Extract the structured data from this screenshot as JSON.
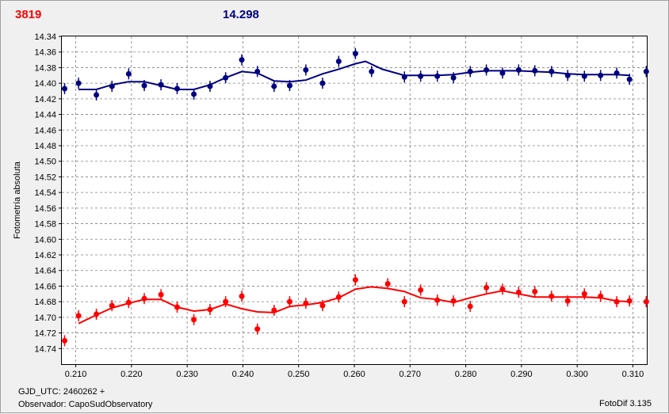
{
  "header": {
    "left_value": "3819",
    "right_value": "14.298"
  },
  "footer": {
    "gjd": "GJD_UTC: 2460262 +",
    "observer": "Observador: CapoSudObservatory",
    "software": "FotoDif 3.135"
  },
  "colors": {
    "blue": "#000080",
    "red": "#ff0000",
    "grid": "#808080"
  },
  "chart_data": {
    "type": "scatter",
    "title": "",
    "xlabel": "",
    "ylabel": "Fotometría absoluta",
    "xlim": [
      0.2075,
      0.3125
    ],
    "ylim": [
      14.34,
      14.76
    ],
    "y_inverted": true,
    "grid": true,
    "x_ticks": [
      "0.210",
      "0.220",
      "0.230",
      "0.240",
      "0.250",
      "0.260",
      "0.270",
      "0.280",
      "0.290",
      "0.300",
      "0.310"
    ],
    "y_ticks": [
      "14.34",
      "14.36",
      "14.38",
      "14.40",
      "14.42",
      "14.44",
      "14.46",
      "14.48",
      "14.50",
      "14.52",
      "14.54",
      "14.56",
      "14.58",
      "14.60",
      "14.62",
      "14.64",
      "14.66",
      "14.68",
      "14.70",
      "14.72",
      "14.74"
    ],
    "series": [
      {
        "color": "#000080",
        "points": [
          [
            0.208,
            14.407
          ],
          [
            0.2105,
            14.4
          ],
          [
            0.2137,
            14.415
          ],
          [
            0.2165,
            14.404
          ],
          [
            0.2195,
            14.388
          ],
          [
            0.2223,
            14.403
          ],
          [
            0.2253,
            14.402
          ],
          [
            0.2282,
            14.407
          ],
          [
            0.2312,
            14.414
          ],
          [
            0.2341,
            14.404
          ],
          [
            0.2369,
            14.393
          ],
          [
            0.2398,
            14.37
          ],
          [
            0.2426,
            14.385
          ],
          [
            0.2456,
            14.404
          ],
          [
            0.2484,
            14.403
          ],
          [
            0.2513,
            14.383
          ],
          [
            0.2543,
            14.4
          ],
          [
            0.2572,
            14.372
          ],
          [
            0.2602,
            14.362
          ],
          [
            0.2631,
            14.385
          ],
          [
            0.269,
            14.392
          ],
          [
            0.2719,
            14.391
          ],
          [
            0.2749,
            14.391
          ],
          [
            0.2778,
            14.393
          ],
          [
            0.2808,
            14.385
          ],
          [
            0.2837,
            14.383
          ],
          [
            0.2866,
            14.387
          ],
          [
            0.2895,
            14.383
          ],
          [
            0.2924,
            14.384
          ],
          [
            0.2954,
            14.385
          ],
          [
            0.2983,
            14.39
          ],
          [
            0.3013,
            14.391
          ],
          [
            0.3042,
            14.39
          ],
          [
            0.3071,
            14.387
          ],
          [
            0.3094,
            14.395
          ],
          [
            0.3124,
            14.385
          ]
        ],
        "fit": [
          [
            0.2105,
            14.408
          ],
          [
            0.2137,
            14.408
          ],
          [
            0.2165,
            14.402
          ],
          [
            0.2195,
            14.398
          ],
          [
            0.2223,
            14.398
          ],
          [
            0.2253,
            14.403
          ],
          [
            0.2282,
            14.408
          ],
          [
            0.2312,
            14.408
          ],
          [
            0.2341,
            14.402
          ],
          [
            0.2369,
            14.393
          ],
          [
            0.2398,
            14.385
          ],
          [
            0.2426,
            14.387
          ],
          [
            0.2456,
            14.397
          ],
          [
            0.2484,
            14.398
          ],
          [
            0.2513,
            14.396
          ],
          [
            0.2543,
            14.388
          ],
          [
            0.2572,
            14.382
          ],
          [
            0.2602,
            14.375
          ],
          [
            0.262,
            14.372
          ],
          [
            0.265,
            14.382
          ],
          [
            0.269,
            14.39
          ],
          [
            0.2719,
            14.39
          ],
          [
            0.2749,
            14.39
          ],
          [
            0.2778,
            14.389
          ],
          [
            0.2808,
            14.386
          ],
          [
            0.2837,
            14.384
          ],
          [
            0.2866,
            14.384
          ],
          [
            0.2895,
            14.384
          ],
          [
            0.2924,
            14.385
          ],
          [
            0.2954,
            14.386
          ],
          [
            0.2983,
            14.388
          ],
          [
            0.3013,
            14.389
          ],
          [
            0.3042,
            14.389
          ],
          [
            0.3071,
            14.389
          ],
          [
            0.3094,
            14.39
          ]
        ]
      },
      {
        "color": "#ff0000",
        "points": [
          [
            0.208,
            14.73
          ],
          [
            0.2105,
            14.698
          ],
          [
            0.2137,
            14.696
          ],
          [
            0.2165,
            14.685
          ],
          [
            0.2195,
            14.681
          ],
          [
            0.2223,
            14.676
          ],
          [
            0.2253,
            14.671
          ],
          [
            0.2282,
            14.687
          ],
          [
            0.2312,
            14.703
          ],
          [
            0.2341,
            14.69
          ],
          [
            0.2369,
            14.68
          ],
          [
            0.2398,
            14.673
          ],
          [
            0.2426,
            14.715
          ],
          [
            0.2456,
            14.691
          ],
          [
            0.2484,
            14.68
          ],
          [
            0.2513,
            14.682
          ],
          [
            0.2543,
            14.685
          ],
          [
            0.2572,
            14.674
          ],
          [
            0.2602,
            14.652
          ],
          [
            0.266,
            14.657
          ],
          [
            0.269,
            14.68
          ],
          [
            0.2719,
            14.665
          ],
          [
            0.2749,
            14.678
          ],
          [
            0.2778,
            14.679
          ],
          [
            0.2808,
            14.686
          ],
          [
            0.2837,
            14.662
          ],
          [
            0.2866,
            14.664
          ],
          [
            0.2895,
            14.668
          ],
          [
            0.2924,
            14.667
          ],
          [
            0.2954,
            14.673
          ],
          [
            0.2983,
            14.679
          ],
          [
            0.3013,
            14.67
          ],
          [
            0.3042,
            14.673
          ],
          [
            0.3071,
            14.68
          ],
          [
            0.3094,
            14.679
          ],
          [
            0.3124,
            14.68
          ]
        ],
        "fit": [
          [
            0.2105,
            14.708
          ],
          [
            0.2137,
            14.697
          ],
          [
            0.2165,
            14.688
          ],
          [
            0.2195,
            14.682
          ],
          [
            0.2223,
            14.677
          ],
          [
            0.2253,
            14.677
          ],
          [
            0.2282,
            14.687
          ],
          [
            0.2312,
            14.692
          ],
          [
            0.2341,
            14.69
          ],
          [
            0.2369,
            14.683
          ],
          [
            0.2398,
            14.689
          ],
          [
            0.2426,
            14.693
          ],
          [
            0.2456,
            14.694
          ],
          [
            0.2484,
            14.686
          ],
          [
            0.2513,
            14.684
          ],
          [
            0.2543,
            14.681
          ],
          [
            0.2572,
            14.675
          ],
          [
            0.2602,
            14.664
          ],
          [
            0.263,
            14.661
          ],
          [
            0.266,
            14.663
          ],
          [
            0.269,
            14.667
          ],
          [
            0.2719,
            14.675
          ],
          [
            0.2749,
            14.677
          ],
          [
            0.2778,
            14.681
          ],
          [
            0.2808,
            14.675
          ],
          [
            0.2837,
            14.67
          ],
          [
            0.2866,
            14.666
          ],
          [
            0.2895,
            14.67
          ],
          [
            0.2924,
            14.674
          ],
          [
            0.2954,
            14.674
          ],
          [
            0.2983,
            14.674
          ],
          [
            0.3013,
            14.674
          ],
          [
            0.3042,
            14.675
          ],
          [
            0.3071,
            14.679
          ],
          [
            0.3094,
            14.68
          ]
        ]
      }
    ]
  }
}
